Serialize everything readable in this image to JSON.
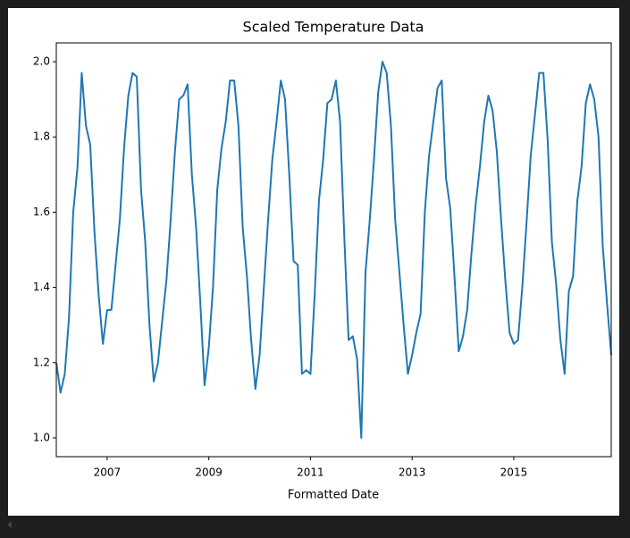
{
  "chart_data": {
    "type": "line",
    "title": "Scaled Temperature Data",
    "x_label": "Formatted Date",
    "x": [
      2006.0,
      2006.083,
      2006.167,
      2006.25,
      2006.333,
      2006.417,
      2006.5,
      2006.583,
      2006.667,
      2006.75,
      2006.833,
      2006.917,
      2007.0,
      2007.083,
      2007.167,
      2007.25,
      2007.333,
      2007.417,
      2007.5,
      2007.583,
      2007.667,
      2007.75,
      2007.833,
      2007.917,
      2008.0,
      2008.083,
      2008.167,
      2008.25,
      2008.333,
      2008.417,
      2008.5,
      2008.583,
      2008.667,
      2008.75,
      2008.833,
      2008.917,
      2009.0,
      2009.083,
      2009.167,
      2009.25,
      2009.333,
      2009.417,
      2009.5,
      2009.583,
      2009.667,
      2009.75,
      2009.833,
      2009.917,
      2010.0,
      2010.083,
      2010.167,
      2010.25,
      2010.333,
      2010.417,
      2010.5,
      2010.583,
      2010.667,
      2010.75,
      2010.833,
      2010.917,
      2011.0,
      2011.083,
      2011.167,
      2011.25,
      2011.333,
      2011.417,
      2011.5,
      2011.583,
      2011.667,
      2011.75,
      2011.833,
      2011.917,
      2012.0,
      2012.083,
      2012.167,
      2012.25,
      2012.333,
      2012.417,
      2012.5,
      2012.583,
      2012.667,
      2012.75,
      2012.833,
      2012.917,
      2013.0,
      2013.083,
      2013.167,
      2013.25,
      2013.333,
      2013.417,
      2013.5,
      2013.583,
      2013.667,
      2013.75,
      2013.833,
      2013.917,
      2014.0,
      2014.083,
      2014.167,
      2014.25,
      2014.333,
      2014.417,
      2014.5,
      2014.583,
      2014.667,
      2014.75,
      2014.833,
      2014.917,
      2015.0,
      2015.083,
      2015.167,
      2015.25,
      2015.333,
      2015.417,
      2015.5,
      2015.583,
      2015.667,
      2015.75,
      2015.833,
      2015.917,
      2016.0,
      2016.083,
      2016.167,
      2016.25,
      2016.333,
      2016.417,
      2016.5,
      2016.583,
      2016.667,
      2016.75,
      2016.833,
      2016.917
    ],
    "series": [
      {
        "color": "#1f77b4",
        "values": [
          1.2,
          1.12,
          1.17,
          1.32,
          1.6,
          1.72,
          1.97,
          1.83,
          1.78,
          1.55,
          1.38,
          1.25,
          1.34,
          1.34,
          1.46,
          1.58,
          1.77,
          1.91,
          1.97,
          1.96,
          1.66,
          1.52,
          1.3,
          1.15,
          1.2,
          1.31,
          1.42,
          1.58,
          1.76,
          1.9,
          1.91,
          1.94,
          1.7,
          1.56,
          1.36,
          1.14,
          1.24,
          1.4,
          1.66,
          1.77,
          1.84,
          1.95,
          1.95,
          1.83,
          1.56,
          1.43,
          1.26,
          1.13,
          1.22,
          1.4,
          1.58,
          1.74,
          1.84,
          1.95,
          1.9,
          1.7,
          1.47,
          1.46,
          1.17,
          1.18,
          1.17,
          1.38,
          1.63,
          1.74,
          1.89,
          1.9,
          1.95,
          1.84,
          1.53,
          1.26,
          1.27,
          1.21,
          1.0,
          1.44,
          1.58,
          1.74,
          1.92,
          2.0,
          1.97,
          1.83,
          1.58,
          1.44,
          1.3,
          1.17,
          1.22,
          1.28,
          1.33,
          1.6,
          1.75,
          1.84,
          1.93,
          1.95,
          1.69,
          1.61,
          1.43,
          1.23,
          1.27,
          1.34,
          1.49,
          1.62,
          1.72,
          1.84,
          1.91,
          1.87,
          1.76,
          1.58,
          1.42,
          1.28,
          1.25,
          1.26,
          1.4,
          1.57,
          1.75,
          1.86,
          1.97,
          1.97,
          1.79,
          1.52,
          1.41,
          1.26,
          1.17,
          1.39,
          1.43,
          1.63,
          1.72,
          1.89,
          1.94,
          1.9,
          1.8,
          1.51,
          1.36,
          1.22
        ]
      }
    ],
    "xlim": [
      2006.0,
      2016.917
    ],
    "xticks": [
      2007,
      2009,
      2011,
      2013,
      2015
    ],
    "ylim": [
      0.95,
      2.05
    ],
    "yticks": [
      {
        "value": 1.0,
        "label": "1.0"
      },
      1.2,
      1.4,
      1.6,
      1.8,
      {
        "value": 2.0,
        "label": "2.0"
      }
    ],
    "grid": false
  }
}
